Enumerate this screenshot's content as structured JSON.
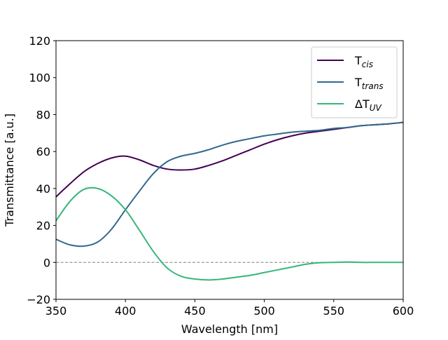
{
  "chart_data": {
    "type": "line",
    "xlabel": "Wavelength [nm]",
    "ylabel": "Transmittance [a.u.]",
    "xlim": [
      350,
      600
    ],
    "ylim": [
      -20,
      120
    ],
    "xticks": [
      350,
      400,
      450,
      500,
      550,
      600
    ],
    "yticks": [
      -20,
      0,
      20,
      40,
      60,
      80,
      100,
      120
    ],
    "grid": false,
    "legend_position": "top-right",
    "reference_line": {
      "y": 0,
      "style": "dashed",
      "color": "#808080"
    },
    "x": [
      350,
      360,
      370,
      380,
      390,
      400,
      410,
      420,
      430,
      440,
      450,
      460,
      470,
      480,
      490,
      500,
      510,
      520,
      530,
      540,
      550,
      560,
      570,
      580,
      590,
      600
    ],
    "series": [
      {
        "name": "T",
        "subscript": "cis",
        "color": "#440154",
        "values": [
          35.5,
          42.5,
          49.0,
          53.5,
          56.5,
          57.5,
          55.5,
          52.5,
          50.5,
          50.0,
          50.5,
          52.5,
          55.0,
          58.0,
          61.0,
          64.0,
          66.5,
          68.5,
          70.0,
          71.0,
          72.0,
          73.0,
          74.0,
          74.5,
          75.0,
          75.8
        ]
      },
      {
        "name": "T",
        "subscript": "trans",
        "color": "#31688e",
        "values": [
          12.5,
          9.5,
          8.8,
          11.0,
          18.0,
          28.5,
          38.5,
          48.0,
          54.5,
          57.5,
          59.0,
          61.0,
          63.5,
          65.5,
          67.0,
          68.5,
          69.5,
          70.5,
          71.0,
          71.5,
          72.5,
          73.0,
          74.0,
          74.5,
          75.0,
          75.8
        ]
      },
      {
        "name": "ΔT",
        "subscript": "UV",
        "color": "#35b779",
        "values": [
          22.5,
          33.0,
          39.5,
          40.0,
          36.0,
          28.5,
          17.5,
          6.0,
          -3.0,
          -7.5,
          -9.0,
          -9.5,
          -9.0,
          -8.0,
          -7.0,
          -5.5,
          -4.0,
          -2.5,
          -1.0,
          -0.2,
          0.0,
          0.2,
          0.0,
          0.0,
          0.0,
          0.0
        ]
      }
    ]
  }
}
